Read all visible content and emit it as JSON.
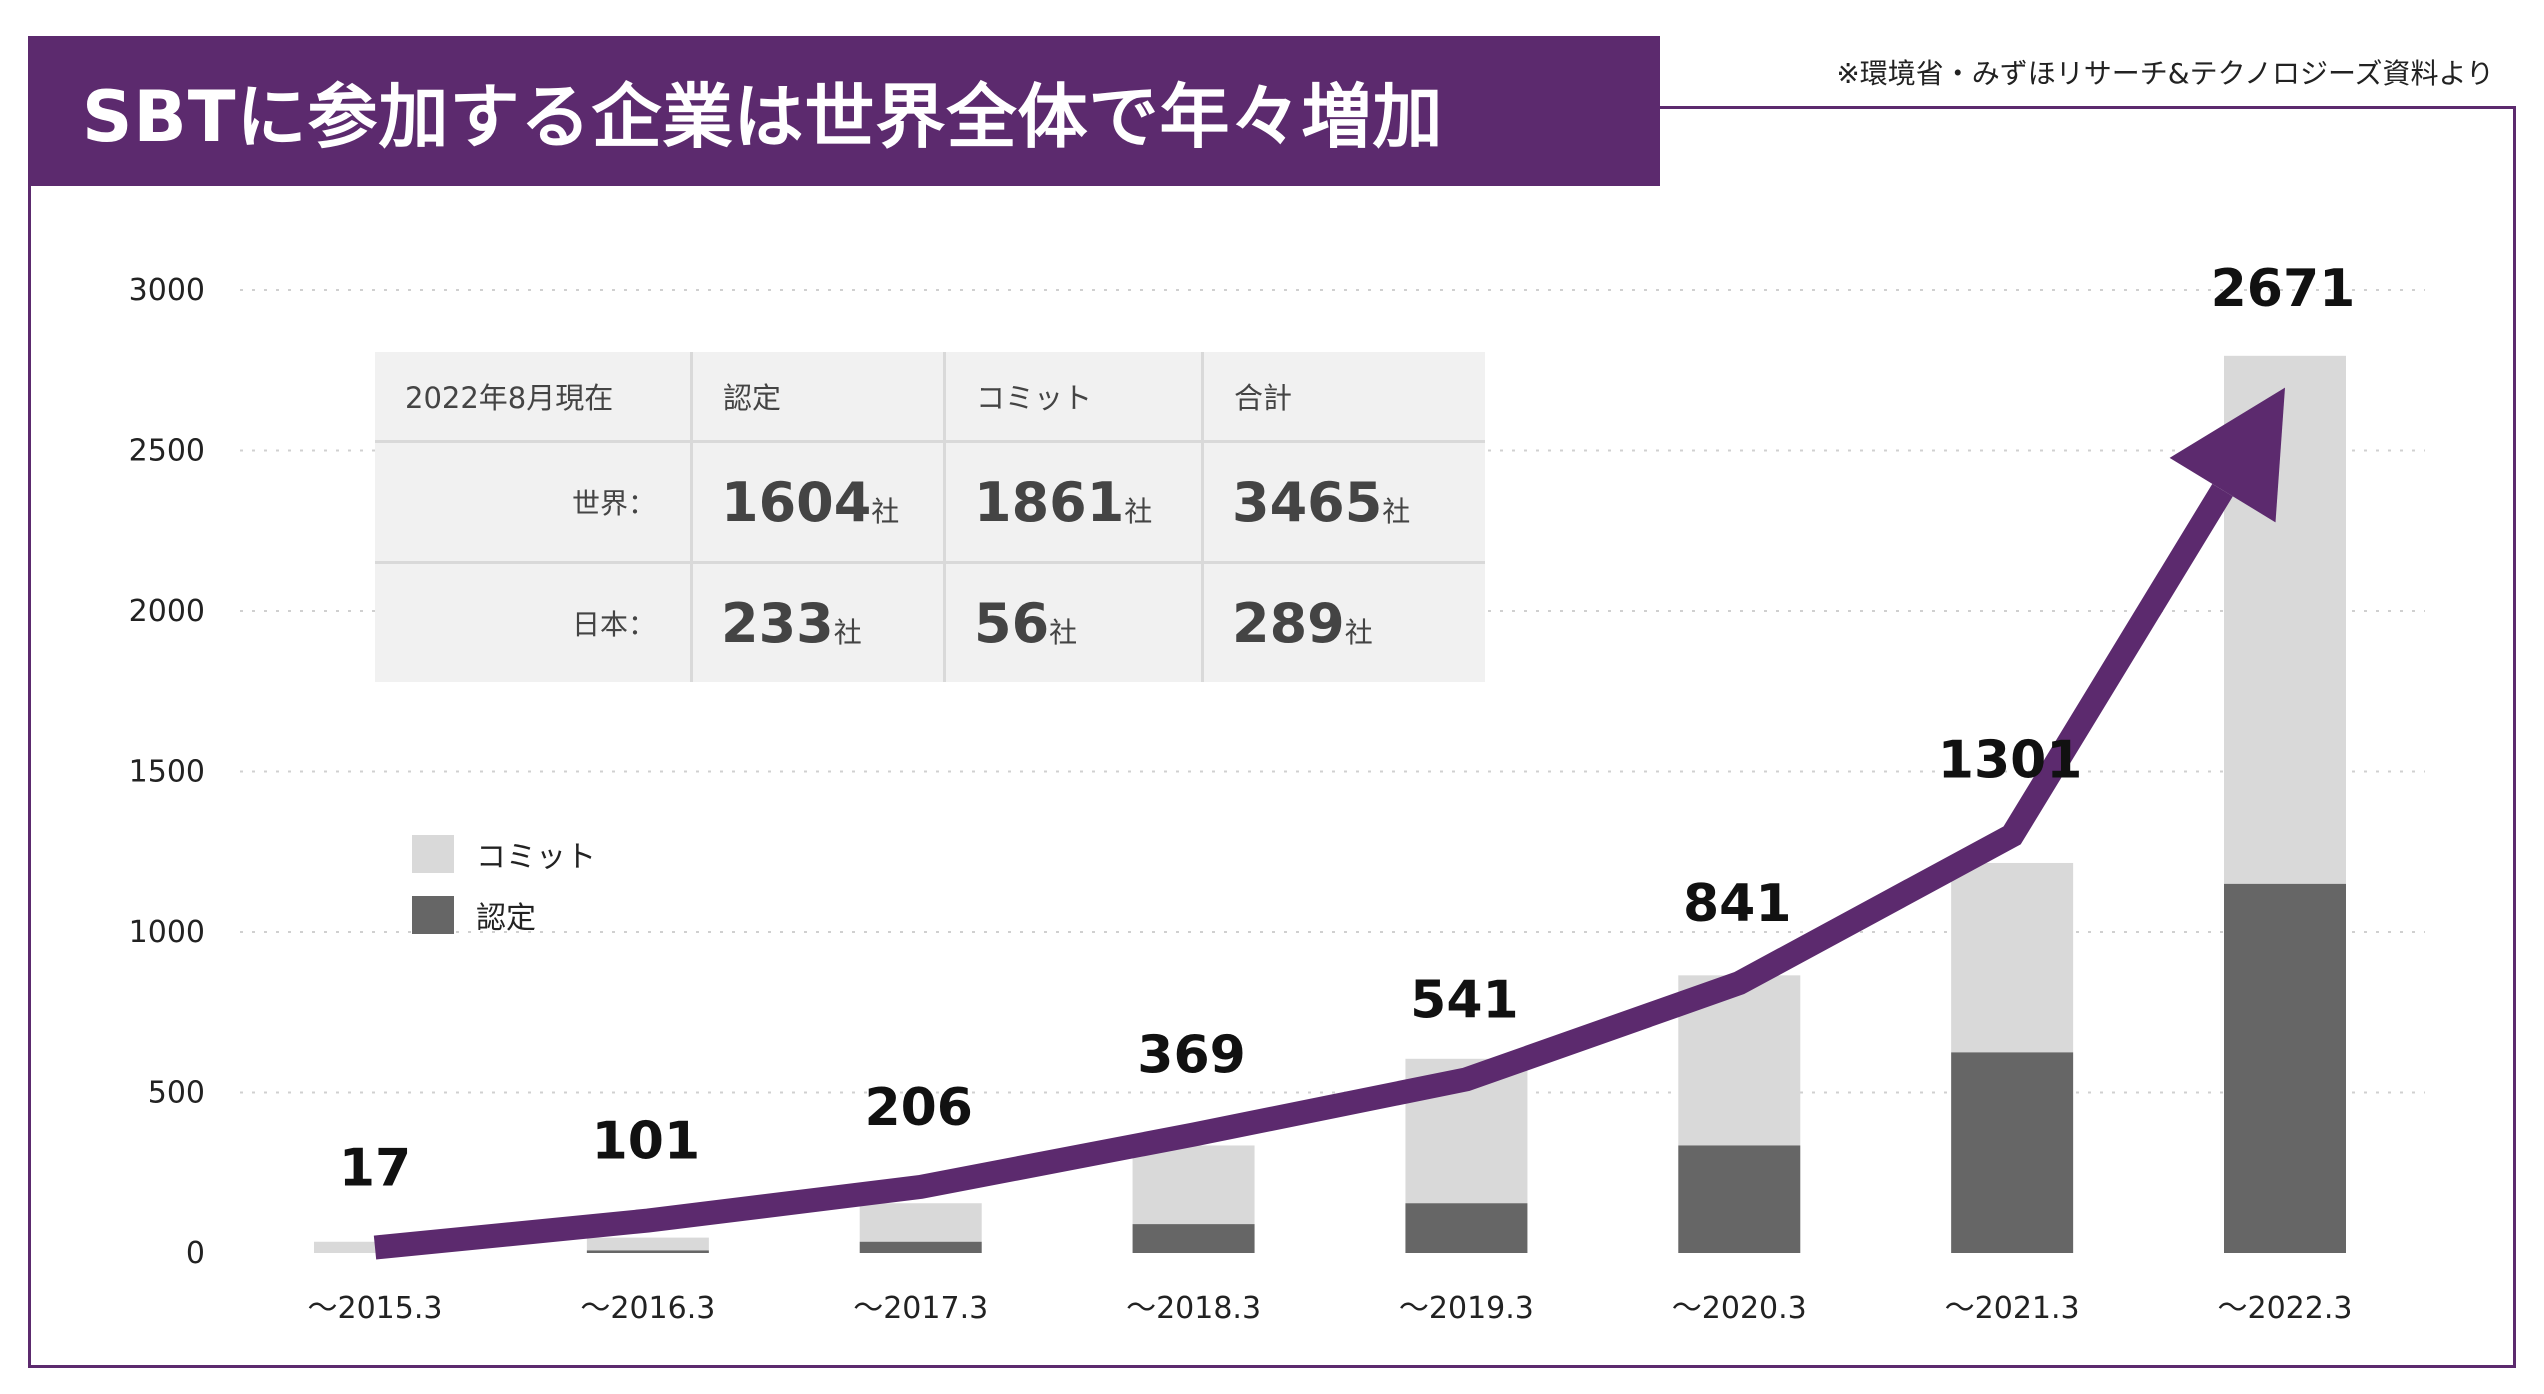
{
  "title": "SBTに参加する企業は世界全体で年々増加",
  "source": "※環境省・みずほリサーチ&テクノロジーズ資料より",
  "colors": {
    "accent": "#5c2a6e",
    "commit": "#d9d9d9",
    "certified": "#666666",
    "table_bg": "#f1f1f1"
  },
  "summary_table": {
    "header": [
      "2022年8月現在",
      "認定",
      "コミット",
      "合計"
    ],
    "unit": "社",
    "rows": [
      {
        "label": "世界：",
        "certified": "1604",
        "commit": "1861",
        "total": "3465"
      },
      {
        "label": "日本：",
        "certified": "233",
        "commit": "56",
        "total": "289"
      }
    ]
  },
  "legend": {
    "commit": "コミット",
    "certified": "認定"
  },
  "chart_data": {
    "type": "bar",
    "stacked": true,
    "title": "SBTに参加する企業は世界全体で年々増加",
    "categories": [
      "〜2015.3",
      "〜2016.3",
      "〜2017.3",
      "〜2018.3",
      "〜2019.3",
      "〜2020.3",
      "〜2021.3",
      "〜2022.3"
    ],
    "series": [
      {
        "name": "認定",
        "values": [
          0,
          8,
          35,
          90,
          155,
          335,
          625,
          1150
        ]
      },
      {
        "name": "コミット",
        "values": [
          35,
          40,
          120,
          245,
          450,
          530,
          590,
          1645
        ]
      }
    ],
    "line": {
      "name": "trend",
      "values": [
        17,
        101,
        206,
        369,
        541,
        841,
        1301,
        2671
      ]
    },
    "data_labels": [
      "17",
      "101",
      "206",
      "369",
      "541",
      "841",
      "1301",
      "2671"
    ],
    "yticks": [
      0,
      500,
      1000,
      1500,
      2000,
      2500,
      3000
    ],
    "ylim": [
      0,
      3000
    ],
    "grid": true,
    "xlabel": "",
    "ylabel": ""
  }
}
